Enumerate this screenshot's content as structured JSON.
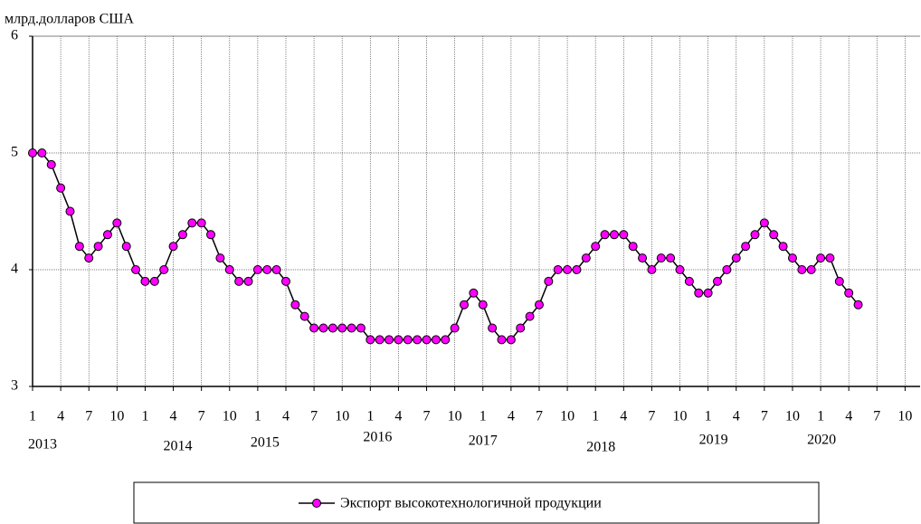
{
  "chart_data": {
    "type": "line",
    "y_label": "млрд.долларов США",
    "categories": [
      1,
      null,
      null,
      4,
      null,
      null,
      7,
      null,
      null,
      10,
      null,
      null,
      1,
      null,
      null,
      4,
      null,
      null,
      7,
      null,
      null,
      10,
      null,
      null,
      1,
      null,
      null,
      4,
      null,
      null,
      7,
      null,
      null,
      10,
      null,
      null,
      1,
      null,
      null,
      4,
      null,
      null,
      7,
      null,
      null,
      10,
      null,
      null,
      1,
      null,
      null,
      4,
      null,
      null,
      7,
      null,
      null,
      10,
      null,
      null,
      1,
      null,
      null,
      4,
      null,
      null,
      7,
      null,
      null,
      10,
      null,
      null,
      1,
      null,
      null,
      4,
      null,
      null,
      7,
      null,
      null,
      10,
      null,
      null,
      1,
      null,
      null,
      4,
      null,
      null,
      7,
      null,
      null,
      10,
      null,
      null
    ],
    "years": [
      "2013",
      "2014",
      "2015",
      "2016",
      "2017",
      "2018",
      "2019",
      "2020"
    ],
    "series": [
      {
        "name": "Экспорт высокотехнологичной продукции",
        "color": "#ff00ff",
        "values": [
          5.0,
          5.0,
          4.9,
          4.7,
          4.5,
          4.2,
          4.1,
          4.2,
          4.3,
          4.4,
          4.2,
          4.0,
          3.9,
          3.9,
          4.0,
          4.2,
          4.3,
          4.4,
          4.4,
          4.3,
          4.1,
          4.0,
          3.9,
          3.9,
          4.0,
          4.0,
          4.0,
          3.9,
          3.7,
          3.6,
          3.5,
          3.5,
          3.5,
          3.5,
          3.5,
          3.5,
          3.4,
          3.4,
          3.4,
          3.4,
          3.4,
          3.4,
          3.4,
          3.4,
          3.4,
          3.5,
          3.7,
          3.8,
          3.7,
          3.5,
          3.4,
          3.4,
          3.5,
          3.6,
          3.7,
          3.9,
          4.0,
          4.0,
          4.0,
          4.1,
          4.2,
          4.3,
          4.3,
          4.3,
          4.2,
          4.1,
          4.0,
          4.1,
          4.1,
          4.0,
          3.9,
          3.8,
          3.8,
          3.9,
          4.0,
          4.1,
          4.2,
          4.3,
          4.4,
          4.3,
          4.2,
          4.1,
          4.0,
          4.0,
          4.1,
          4.1,
          3.9,
          3.8,
          3.7,
          null,
          null,
          null,
          null,
          null,
          null,
          null
        ]
      }
    ],
    "ylim": [
      3,
      6
    ],
    "yticks": [
      3,
      4,
      5,
      6
    ],
    "grid": true
  }
}
